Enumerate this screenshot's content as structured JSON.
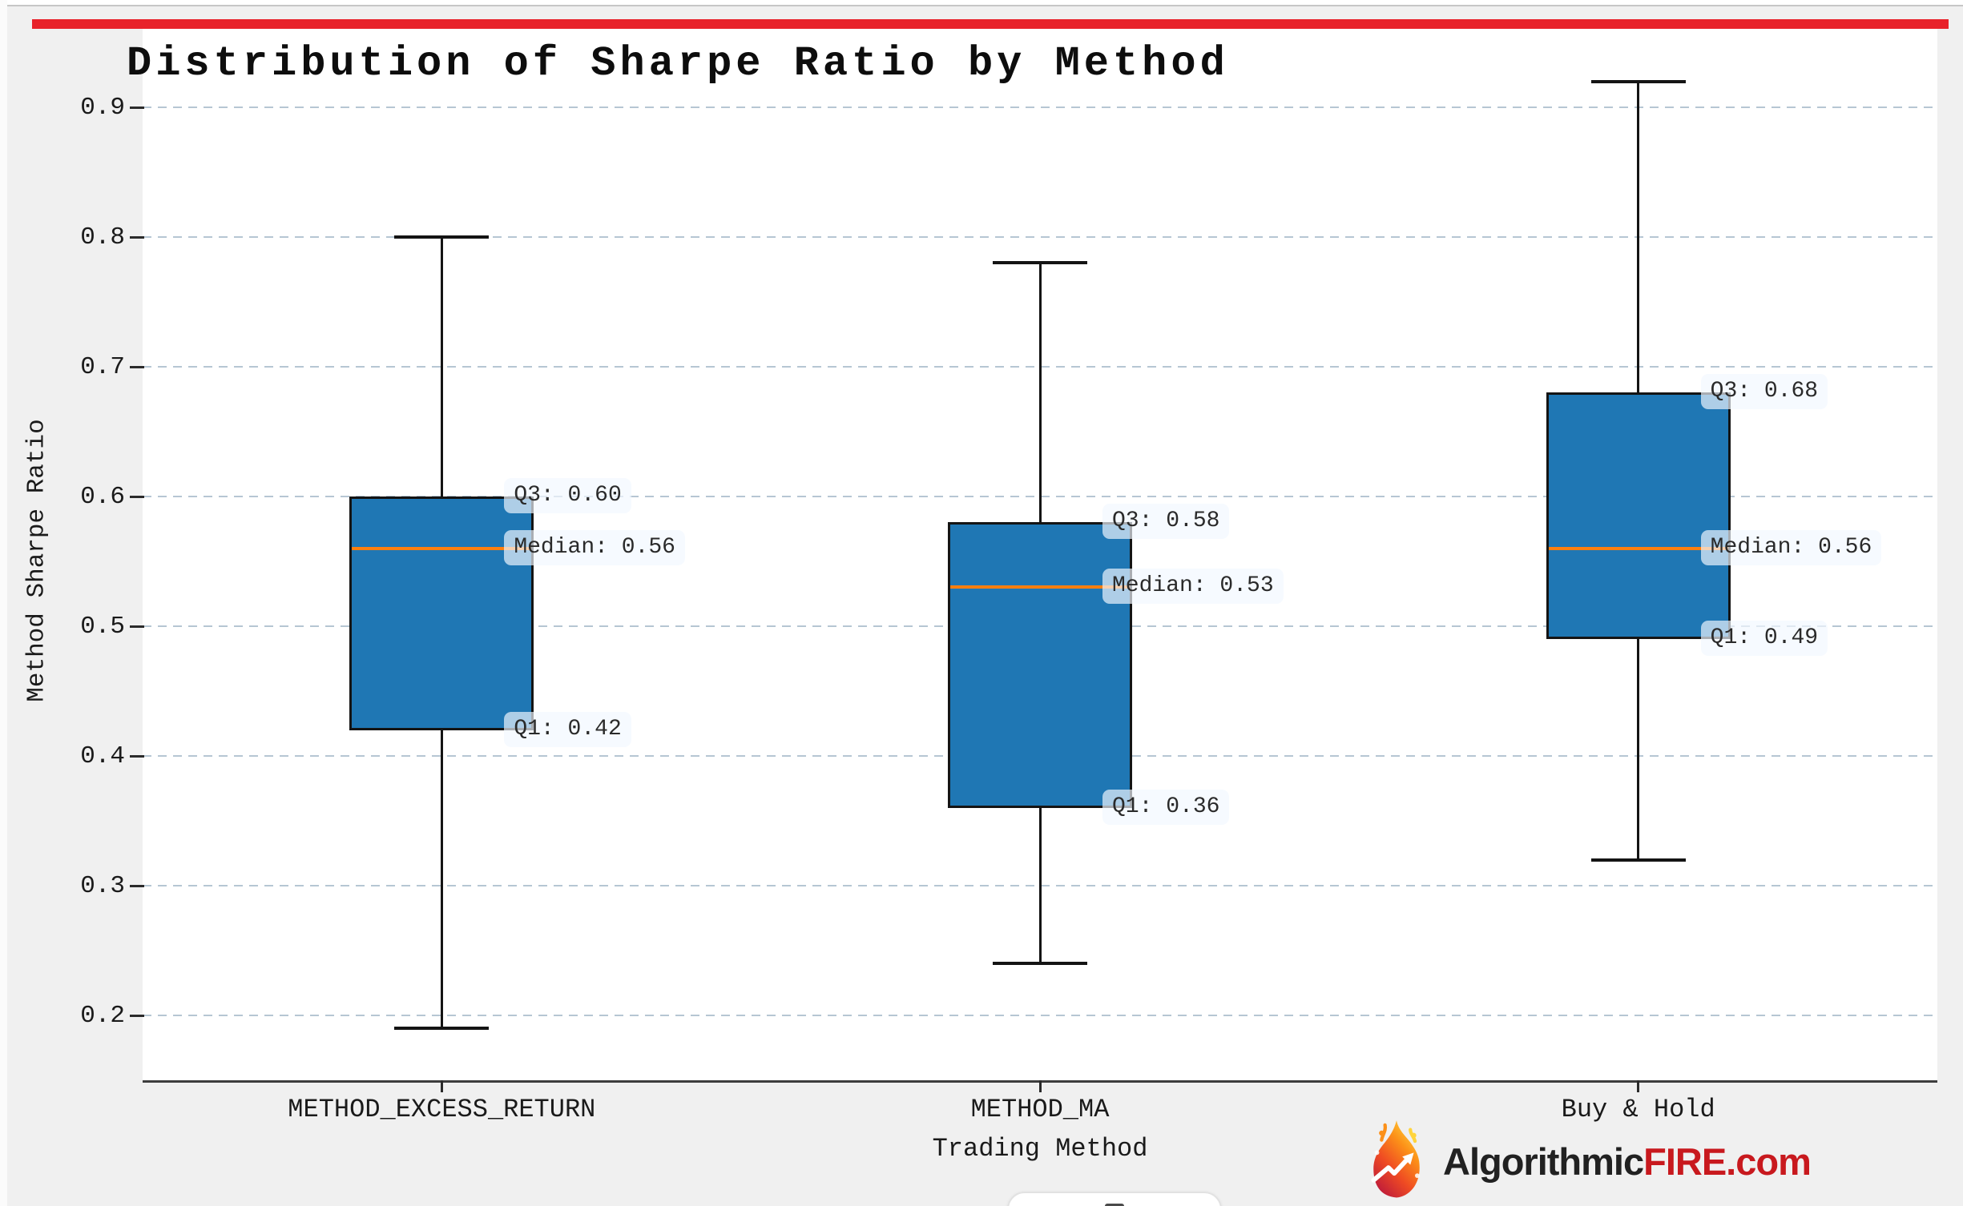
{
  "window": {
    "top_accent_color": "#e8222a",
    "figure_background": "#f0f0f0",
    "plot_background": "#ffffff"
  },
  "chart_data": {
    "type": "box",
    "title": "Distribution of Sharpe Ratio by Method",
    "xlabel": "Trading Method",
    "ylabel": "Method Sharpe Ratio",
    "ylim": [
      0.15,
      0.96
    ],
    "yticks": [
      0.9,
      0.8,
      0.7,
      0.6,
      0.5,
      0.4,
      0.3,
      0.2
    ],
    "grid": "horizontal dashed",
    "legend": "none",
    "box_fill_color": "#1f77b4",
    "box_edge_color": "#141414",
    "median_line_color": "#ff7f0e",
    "grid_color": "#b6c6d3",
    "categories": [
      "METHOD_EXCESS_RETURN",
      "METHOD_MA",
      "Buy & Hold"
    ],
    "boxes": [
      {
        "category": "METHOD_EXCESS_RETURN",
        "whisker_high": 0.8,
        "q3": 0.6,
        "median": 0.56,
        "q1": 0.42,
        "whisker_low": 0.19,
        "labels": {
          "q3": "Q3: 0.60",
          "median": "Median: 0.56",
          "q1": "Q1: 0.42"
        }
      },
      {
        "category": "METHOD_MA",
        "whisker_high": 0.78,
        "q3": 0.58,
        "median": 0.53,
        "q1": 0.36,
        "whisker_low": 0.24,
        "labels": {
          "q3": "Q3: 0.58",
          "median": "Median: 0.53",
          "q1": "Q1: 0.36"
        }
      },
      {
        "category": "Buy & Hold",
        "whisker_high": 0.92,
        "q3": 0.68,
        "median": 0.56,
        "q1": 0.49,
        "whisker_low": 0.32,
        "labels": {
          "q3": "Q3: 0.68",
          "median": "Median: 0.56",
          "q1": "Q1: 0.49"
        }
      }
    ]
  },
  "branding": {
    "icon": "flame-icon",
    "black_text": "Algorithmic",
    "red_text": "FIRE.com",
    "red_color": "#c8191e"
  }
}
